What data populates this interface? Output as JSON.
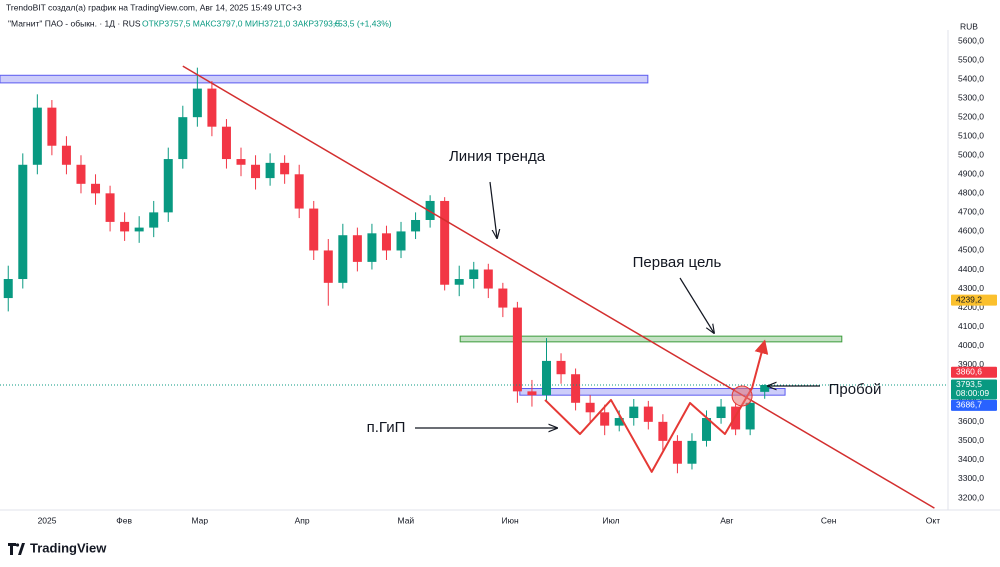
{
  "header": {
    "credit": "TrendoBIT создал(а) график на TradingView.com, Авг 14, 2025 15:49 UTC+3",
    "symbol": "\"Магнит\" ПАО - обыкн. · 1Д · RUS",
    "ohlc_text": "ОТКР3757,5 МАКС3797,0 МИН3721,0 ЗАКР3793,5",
    "change": "+53,5 (+1,43%)"
  },
  "footer": {
    "logo": "TradingView"
  },
  "chart_data": {
    "type": "candlestick",
    "currency": "RUB",
    "up_color": "#089981",
    "down_color": "#f23645",
    "x": [
      -8,
      -5,
      -2,
      1,
      4,
      7,
      10,
      13,
      16,
      19,
      22,
      25,
      28,
      31,
      34,
      37,
      40,
      43,
      46,
      49,
      52,
      55,
      58,
      61,
      64,
      67,
      70,
      73,
      76,
      79,
      82,
      85,
      88,
      91,
      94,
      97,
      100,
      103,
      106,
      109,
      112,
      115,
      118,
      121,
      124,
      127,
      130,
      133,
      136,
      139,
      142,
      145,
      148
    ],
    "open": [
      4250,
      4350,
      4950,
      5250,
      5050,
      4950,
      4850,
      4800,
      4650,
      4600,
      4620,
      4700,
      4980,
      5200,
      5350,
      5150,
      4980,
      4950,
      4880,
      4960,
      4900,
      4720,
      4500,
      4330,
      4580,
      4440,
      4590,
      4500,
      4600,
      4660,
      4760,
      4320,
      4350,
      4400,
      4300,
      4200,
      3760,
      3740,
      3920,
      3850,
      3700,
      3650,
      3580,
      3620,
      3680,
      3600,
      3500,
      3380,
      3500,
      3620,
      3680,
      3560,
      3757.5
    ],
    "high": [
      4420,
      5010,
      5320,
      5290,
      5100,
      5000,
      4900,
      4840,
      4700,
      4680,
      4760,
      5040,
      5260,
      5460,
      5390,
      5190,
      5040,
      5000,
      5010,
      5000,
      4950,
      4760,
      4560,
      4640,
      4620,
      4640,
      4630,
      4650,
      4700,
      4790,
      4780,
      4420,
      4440,
      4430,
      4330,
      4230,
      3820,
      4040,
      3960,
      3880,
      3740,
      3690,
      3660,
      3720,
      3710,
      3640,
      3530,
      3540,
      3660,
      3720,
      3700,
      3720,
      3797
    ],
    "low": [
      4180,
      4300,
      4900,
      5000,
      4900,
      4800,
      4740,
      4600,
      4550,
      4540,
      4570,
      4650,
      4930,
      5150,
      5100,
      4930,
      4890,
      4820,
      4840,
      4850,
      4670,
      4450,
      4210,
      4300,
      4390,
      4400,
      4450,
      4460,
      4560,
      4620,
      4290,
      4260,
      4300,
      4250,
      4150,
      3700,
      3680,
      3710,
      3800,
      3660,
      3600,
      3530,
      3550,
      3580,
      3560,
      3450,
      3330,
      3350,
      3470,
      3590,
      3530,
      3530,
      3721
    ],
    "close": [
      4350,
      4950,
      5250,
      5050,
      4950,
      4850,
      4800,
      4650,
      4600,
      4620,
      4700,
      4980,
      5200,
      5350,
      5150,
      4980,
      4950,
      4880,
      4960,
      4900,
      4720,
      4500,
      4330,
      4580,
      4440,
      4590,
      4500,
      4600,
      4660,
      4760,
      4320,
      4350,
      4400,
      4300,
      4200,
      3760,
      3740,
      3920,
      3850,
      3700,
      3650,
      3580,
      3620,
      3680,
      3600,
      3500,
      3380,
      3500,
      3620,
      3680,
      3560,
      3700,
      3793.5
    ],
    "xlim": [
      -9.7,
      185.8
    ],
    "ylim": [
      3200,
      5600
    ],
    "xticks": [
      {
        "value": 0,
        "label": "2025"
      },
      {
        "value": 15.9,
        "label": "Фев"
      },
      {
        "value": 31.5,
        "label": "Мар"
      },
      {
        "value": 52.6,
        "label": "Апр"
      },
      {
        "value": 74,
        "label": "Май"
      },
      {
        "value": 95.5,
        "label": "Июн"
      },
      {
        "value": 116.3,
        "label": "Июл"
      },
      {
        "value": 140.2,
        "label": "Авг"
      },
      {
        "value": 161.2,
        "label": "Сен"
      },
      {
        "value": 182.7,
        "label": "Окт"
      }
    ],
    "yticks": [
      {
        "value": 3200,
        "label": "3200,0"
      },
      {
        "value": 3300,
        "label": "3300,0"
      },
      {
        "value": 3400,
        "label": "3400,0"
      },
      {
        "value": 3500,
        "label": "3500,0"
      },
      {
        "value": 3600,
        "label": "3600,0"
      },
      {
        "value": 3700,
        "label": "3700,0"
      },
      {
        "value": 3800,
        "label": "3800,0"
      },
      {
        "value": 3900,
        "label": "3900,0"
      },
      {
        "value": 4000,
        "label": "4000,0"
      },
      {
        "value": 4100,
        "label": "4100,0"
      },
      {
        "value": 4200,
        "label": "4200,0"
      },
      {
        "value": 4300,
        "label": "4300,0"
      },
      {
        "value": 4400,
        "label": "4400,0"
      },
      {
        "value": 4500,
        "label": "4500,0"
      },
      {
        "value": 4600,
        "label": "4600,0"
      },
      {
        "value": 4700,
        "label": "4700,0"
      },
      {
        "value": 4800,
        "label": "4800,0"
      },
      {
        "value": 4900,
        "label": "4900,0"
      },
      {
        "value": 5000,
        "label": "5000,0"
      },
      {
        "value": 5100,
        "label": "5100,0"
      },
      {
        "value": 5200,
        "label": "5200,0"
      },
      {
        "value": 5300,
        "label": "5300,0"
      },
      {
        "value": 5400,
        "label": "5400,0"
      },
      {
        "value": 5500,
        "label": "5500,0"
      },
      {
        "value": 5600,
        "label": "5600,0"
      }
    ],
    "price_labels": [
      {
        "value": 4239.2,
        "label": "4239,2",
        "color": "#fbc02d"
      },
      {
        "value": 3860.6,
        "label": "3860,6",
        "color": "#f23645"
      },
      {
        "value": 3793.5,
        "label": "3793,5",
        "color": "#089981",
        "countdown": "08:00:09"
      },
      {
        "value": 3686.7,
        "label": "3686,7",
        "color": "#2962ff"
      }
    ],
    "zones": [
      {
        "x": [
          -9.7,
          123.9
        ],
        "y": [
          5380,
          5420
        ],
        "color": "#5b5bf0"
      },
      {
        "x": [
          85.2,
          163.9
        ],
        "y": [
          4020,
          4050
        ],
        "color": "#3c9c3c"
      },
      {
        "x": [
          97.5,
          152.2
        ],
        "y": [
          3740,
          3775
        ],
        "color": "#5b5bf0"
      }
    ],
    "lines": [
      {
        "name": "trend",
        "x": [
          28,
          183
        ],
        "y": [
          5468,
          3147
        ],
        "color": "#d32f2f",
        "width": 1.5
      },
      {
        "name": "pattern",
        "x": [
          102.7,
          109.9,
          116.3,
          124.7,
          132.6,
          139.8,
          145.4,
          148
        ],
        "y": [
          3715,
          3536,
          3715,
          3337,
          3699,
          3536,
          3778,
          4025
        ],
        "color": "#e53935",
        "width": 2
      }
    ],
    "annotations": [
      "Линия тренда",
      "Первая цель",
      "Пробой",
      "п.ГиП"
    ]
  }
}
